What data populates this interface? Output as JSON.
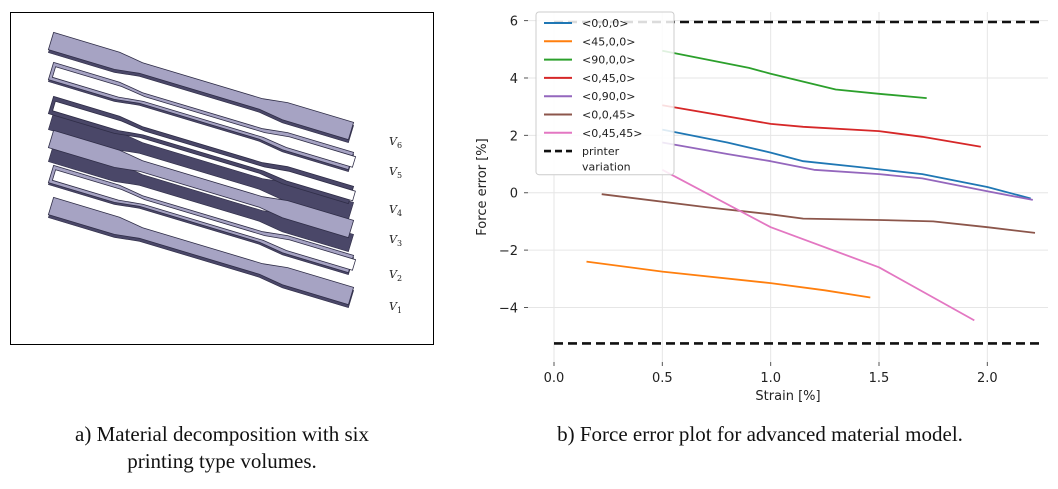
{
  "figure_a": {
    "volumes": [
      {
        "var": "V",
        "sub": "6"
      },
      {
        "var": "V",
        "sub": "5"
      },
      {
        "var": "V",
        "sub": "4"
      },
      {
        "var": "V",
        "sub": "3"
      },
      {
        "var": "V",
        "sub": "2"
      },
      {
        "var": "V",
        "sub": "1"
      }
    ],
    "colors": {
      "top": "#a6a3c3",
      "side": "#4a4768",
      "edge": "#2f2d47"
    }
  },
  "captions": {
    "a_line1": "a) Material decomposition with six",
    "a_line2": "printing type volumes.",
    "b": "b) Force error plot for advanced material model."
  },
  "chart_data": {
    "type": "line",
    "xlabel": "Strain [%]",
    "ylabel": "Force error [%]",
    "xlim": [
      -0.12,
      2.28
    ],
    "ylim": [
      -5.9,
      6.3
    ],
    "xticks": [
      0.0,
      0.5,
      1.0,
      1.5,
      2.0
    ],
    "xtick_labels": [
      "0.0",
      "0.5",
      "1.0",
      "1.5",
      "2.0"
    ],
    "yticks": [
      -4,
      -2,
      0,
      2,
      4,
      6
    ],
    "ytick_labels": [
      "−4",
      "−2",
      "0",
      "2",
      "4",
      "6"
    ],
    "grid": true,
    "legend_position": "top-left",
    "series": [
      {
        "name": "<0,0,0>",
        "color": "#1f77b4",
        "dash": "solid",
        "x": [
          0.5,
          0.8,
          1.0,
          1.15,
          1.4,
          1.7,
          2.0,
          2.2
        ],
        "y": [
          2.2,
          1.75,
          1.4,
          1.1,
          0.9,
          0.65,
          0.2,
          -0.2
        ]
      },
      {
        "name": "<45,0,0>",
        "color": "#ff7f0e",
        "dash": "solid",
        "x": [
          0.15,
          0.5,
          1.0,
          1.25,
          1.46
        ],
        "y": [
          -2.4,
          -2.75,
          -3.15,
          -3.4,
          -3.65
        ]
      },
      {
        "name": "<90,0,0>",
        "color": "#2ca02c",
        "dash": "solid",
        "x": [
          0.5,
          0.9,
          1.0,
          1.3,
          1.5,
          1.72
        ],
        "y": [
          4.95,
          4.35,
          4.15,
          3.6,
          3.45,
          3.3
        ]
      },
      {
        "name": "<0,45,0>",
        "color": "#d62728",
        "dash": "solid",
        "x": [
          0.5,
          1.0,
          1.15,
          1.5,
          1.7,
          1.97
        ],
        "y": [
          3.05,
          2.4,
          2.3,
          2.15,
          1.95,
          1.6
        ]
      },
      {
        "name": "<0,90,0>",
        "color": "#9467bd",
        "dash": "solid",
        "x": [
          0.5,
          0.8,
          1.0,
          1.2,
          1.5,
          1.7,
          2.0,
          2.21
        ],
        "y": [
          1.75,
          1.35,
          1.1,
          0.8,
          0.65,
          0.5,
          0.05,
          -0.25
        ]
      },
      {
        "name": "<0,0,45>",
        "color": "#8c564b",
        "dash": "solid",
        "x": [
          0.22,
          0.7,
          1.0,
          1.15,
          1.5,
          1.75,
          2.0,
          2.22
        ],
        "y": [
          -0.05,
          -0.5,
          -0.75,
          -0.9,
          -0.95,
          -1.0,
          -1.2,
          -1.4
        ]
      },
      {
        "name": "<0,45,45>",
        "color": "#e377c2",
        "dash": "solid",
        "x": [
          0.5,
          1.0,
          1.5,
          1.94
        ],
        "y": [
          0.8,
          -1.2,
          -2.6,
          -4.45
        ]
      },
      {
        "name": "printer variation",
        "color": "#111111",
        "dash": "dashed",
        "x": [
          0.0,
          2.25
        ],
        "y": [
          5.95,
          5.95
        ]
      },
      {
        "name": "printer variation",
        "color": "#111111",
        "dash": "dashed",
        "x": [
          0.0,
          2.25
        ],
        "y": [
          -5.25,
          -5.25
        ]
      }
    ],
    "legend_entries": [
      {
        "label": "<0,0,0>",
        "color": "#1f77b4",
        "dash": "solid"
      },
      {
        "label": "<45,0,0>",
        "color": "#ff7f0e",
        "dash": "solid"
      },
      {
        "label": "<90,0,0>",
        "color": "#2ca02c",
        "dash": "solid"
      },
      {
        "label": "<0,45,0>",
        "color": "#d62728",
        "dash": "solid"
      },
      {
        "label": "<0,90,0>",
        "color": "#9467bd",
        "dash": "solid"
      },
      {
        "label": "<0,0,45>",
        "color": "#8c564b",
        "dash": "solid"
      },
      {
        "label": "<0,45,45>",
        "color": "#e377c2",
        "dash": "solid"
      },
      {
        "label": "printer",
        "label2": "variation",
        "color": "#111111",
        "dash": "dashed"
      }
    ]
  }
}
